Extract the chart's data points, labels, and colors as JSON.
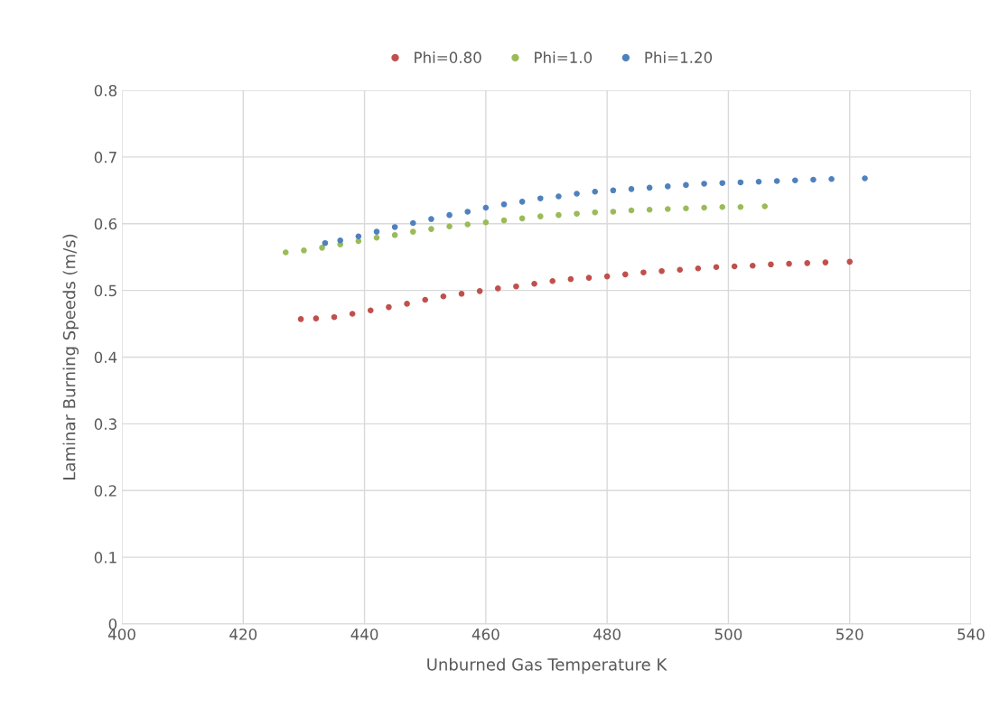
{
  "chart_data": {
    "type": "scatter",
    "xlabel": "Unburned Gas Temperature K",
    "ylabel": "Laminar Burning Speeds (m/s)",
    "xlim": [
      400,
      540
    ],
    "xticks": [
      400,
      420,
      440,
      460,
      480,
      500,
      520,
      540
    ],
    "ylim": [
      0,
      0.8
    ],
    "yticks": [
      0,
      0.1,
      0.2,
      0.3,
      0.4,
      0.5,
      0.6,
      0.7,
      0.8
    ],
    "grid": true,
    "legend": "top",
    "marker": "circle",
    "series": [
      {
        "name": "Phi=0.80",
        "color": "#c0504d",
        "x": [
          429.5,
          432,
          435,
          438,
          441,
          444,
          447,
          450,
          453,
          456,
          459,
          462,
          465,
          468,
          471,
          474,
          477,
          480,
          483,
          486,
          489,
          492,
          495,
          498,
          501,
          504,
          507,
          510,
          513,
          516,
          520
        ],
        "values": [
          0.457,
          0.458,
          0.46,
          0.465,
          0.47,
          0.475,
          0.48,
          0.486,
          0.491,
          0.495,
          0.499,
          0.503,
          0.506,
          0.51,
          0.514,
          0.517,
          0.519,
          0.521,
          0.524,
          0.527,
          0.529,
          0.531,
          0.533,
          0.535,
          0.536,
          0.537,
          0.539,
          0.54,
          0.541,
          0.542,
          0.543
        ]
      },
      {
        "name": "Phi=1.0",
        "color": "#9bbb59",
        "x": [
          427,
          430,
          433,
          436,
          439,
          442,
          445,
          448,
          451,
          454,
          457,
          460,
          463,
          466,
          469,
          472,
          475,
          478,
          481,
          484,
          487,
          490,
          493,
          496,
          499,
          502,
          506
        ],
        "values": [
          0.557,
          0.56,
          0.564,
          0.569,
          0.574,
          0.579,
          0.583,
          0.588,
          0.592,
          0.596,
          0.599,
          0.602,
          0.605,
          0.608,
          0.611,
          0.613,
          0.615,
          0.617,
          0.618,
          0.62,
          0.621,
          0.622,
          0.623,
          0.624,
          0.625,
          0.625,
          0.626
        ]
      },
      {
        "name": "Phi=1.20",
        "color": "#4f81bd",
        "x": [
          433.5,
          436,
          439,
          442,
          445,
          448,
          451,
          454,
          457,
          460,
          463,
          466,
          469,
          472,
          475,
          478,
          481,
          484,
          487,
          490,
          493,
          496,
          499,
          502,
          505,
          508,
          511,
          514,
          517,
          522.5
        ],
        "values": [
          0.571,
          0.575,
          0.581,
          0.588,
          0.595,
          0.601,
          0.607,
          0.613,
          0.618,
          0.624,
          0.629,
          0.633,
          0.638,
          0.641,
          0.645,
          0.648,
          0.65,
          0.652,
          0.654,
          0.656,
          0.658,
          0.66,
          0.661,
          0.662,
          0.663,
          0.664,
          0.665,
          0.666,
          0.667,
          0.668
        ]
      }
    ]
  }
}
